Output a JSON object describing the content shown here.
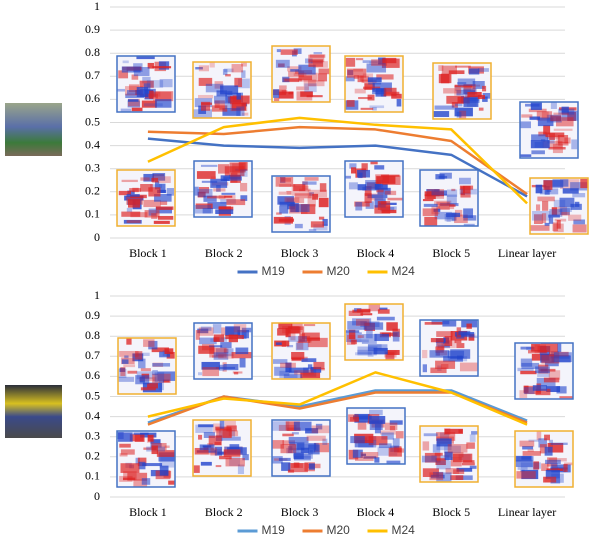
{
  "chart_data": [
    {
      "type": "line",
      "categories": [
        "Block 1",
        "Block 2",
        "Block 3",
        "Block 4",
        "Block 5",
        "Linear layer"
      ],
      "series": [
        {
          "name": "M19",
          "color": "#4472c4",
          "values": [
            0.43,
            0.4,
            0.39,
            0.4,
            0.36,
            0.18
          ]
        },
        {
          "name": "M20",
          "color": "#ed7d31",
          "values": [
            0.46,
            0.45,
            0.48,
            0.47,
            0.42,
            0.19
          ]
        },
        {
          "name": "M24",
          "color": "#ffc000",
          "values": [
            0.33,
            0.48,
            0.52,
            0.49,
            0.47,
            0.15
          ]
        }
      ],
      "ylim": [
        0,
        1
      ],
      "yticks": [
        0,
        0.1,
        0.2,
        0.3,
        0.4,
        0.5,
        0.6,
        0.7,
        0.8,
        0.9,
        1
      ],
      "grid": true,
      "legend": "bottom"
    },
    {
      "type": "line",
      "categories": [
        "Block 1",
        "Block 2",
        "Block 3",
        "Block 4",
        "Block 5",
        "Linear layer"
      ],
      "series": [
        {
          "name": "M19",
          "color": "#5b9bd5",
          "values": [
            0.37,
            0.5,
            0.45,
            0.53,
            0.53,
            0.38
          ]
        },
        {
          "name": "M20",
          "color": "#ed7d31",
          "values": [
            0.36,
            0.5,
            0.44,
            0.52,
            0.52,
            0.37
          ]
        },
        {
          "name": "M24",
          "color": "#ffc000",
          "values": [
            0.4,
            0.49,
            0.46,
            0.62,
            0.52,
            0.36
          ]
        }
      ],
      "ylim": [
        0,
        1
      ],
      "yticks": [
        0,
        0.1,
        0.2,
        0.3,
        0.4,
        0.5,
        0.6,
        0.7,
        0.8,
        0.9,
        1
      ],
      "grid": true,
      "legend": "bottom"
    }
  ]
}
